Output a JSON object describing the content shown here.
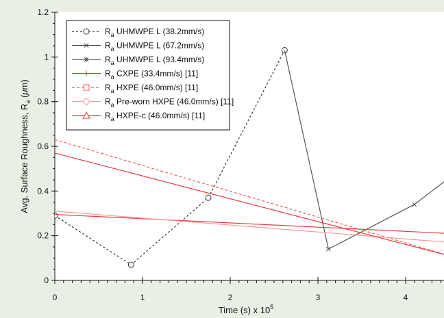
{
  "chart_data": {
    "type": "line",
    "xlabel": "Time (s) x 10",
    "xlabel_exponent": "5",
    "ylabel_prefix": "Avg. Surface Roughness, R",
    "ylabel_sub": "a",
    "ylabel_unit_open": " (",
    "ylabel_unit_mu": "μ",
    "ylabel_unit_close": "m)",
    "xlim": [
      0,
      4.5
    ],
    "ylim": [
      0,
      1.2
    ],
    "xticks": [
      "0",
      "1",
      "2",
      "3",
      "4"
    ],
    "yticks": [
      "0",
      "0.2",
      "0.4",
      "0.6",
      "0.8",
      "1",
      "1.2"
    ],
    "legend_placement": "top-left",
    "series": [
      {
        "name_main": "R",
        "name_sub": "a",
        "name_rest": " UHMWPE L (38.2mm/s)",
        "color": "#333333",
        "dash": "3,3",
        "marker": "circle",
        "x": [
          0,
          0.87,
          1.75,
          2.62
        ],
        "y": [
          0.29,
          0.07,
          0.37,
          1.03
        ]
      },
      {
        "name_main": "R",
        "name_sub": "a",
        "name_rest": " UHMWPE L (67.2mm/s)",
        "color": "#555555",
        "dash": "",
        "marker": "x",
        "x": [
          2.62,
          3.12,
          4.1,
          4.5
        ],
        "y": [
          1.03,
          0.14,
          0.34,
          0.46
        ]
      },
      {
        "name_main": "R",
        "name_sub": "a",
        "name_rest": " UHMWPE L (93.4mm/s)",
        "color": "#555555",
        "dash": "",
        "marker": "star",
        "x": [],
        "y": []
      },
      {
        "name_main": "R",
        "name_sub": "a",
        "name_rest": " CXPE (33.4mm/s) [11]",
        "color": "#e8383d",
        "dash": "",
        "marker": "plus",
        "x": [
          0,
          4.5
        ],
        "y": [
          0.295,
          0.21
        ]
      },
      {
        "name_main": "R",
        "name_sub": "a",
        "name_rest": " HXPE (46.0mm/s) [11]",
        "color": "#ef5a5a",
        "dash": "4,3",
        "marker": "square",
        "x": [
          0,
          4.5
        ],
        "y": [
          0.63,
          0.11
        ]
      },
      {
        "name_main": "R",
        "name_sub": "a",
        "name_rest": " Pre-worn HXPE (46.0mm/s) [11]",
        "color": "#f29a9a",
        "dash": "",
        "marker": "diamond",
        "x": [
          0,
          4.5
        ],
        "y": [
          0.31,
          0.17
        ]
      },
      {
        "name_main": "R",
        "name_sub": "a",
        "name_rest": " HXPE-c (46.0mm/s) [11]",
        "color": "#e8383d",
        "dash": "",
        "marker": "triangle",
        "x": [
          0,
          4.5
        ],
        "y": [
          0.57,
          0.11
        ]
      }
    ]
  }
}
